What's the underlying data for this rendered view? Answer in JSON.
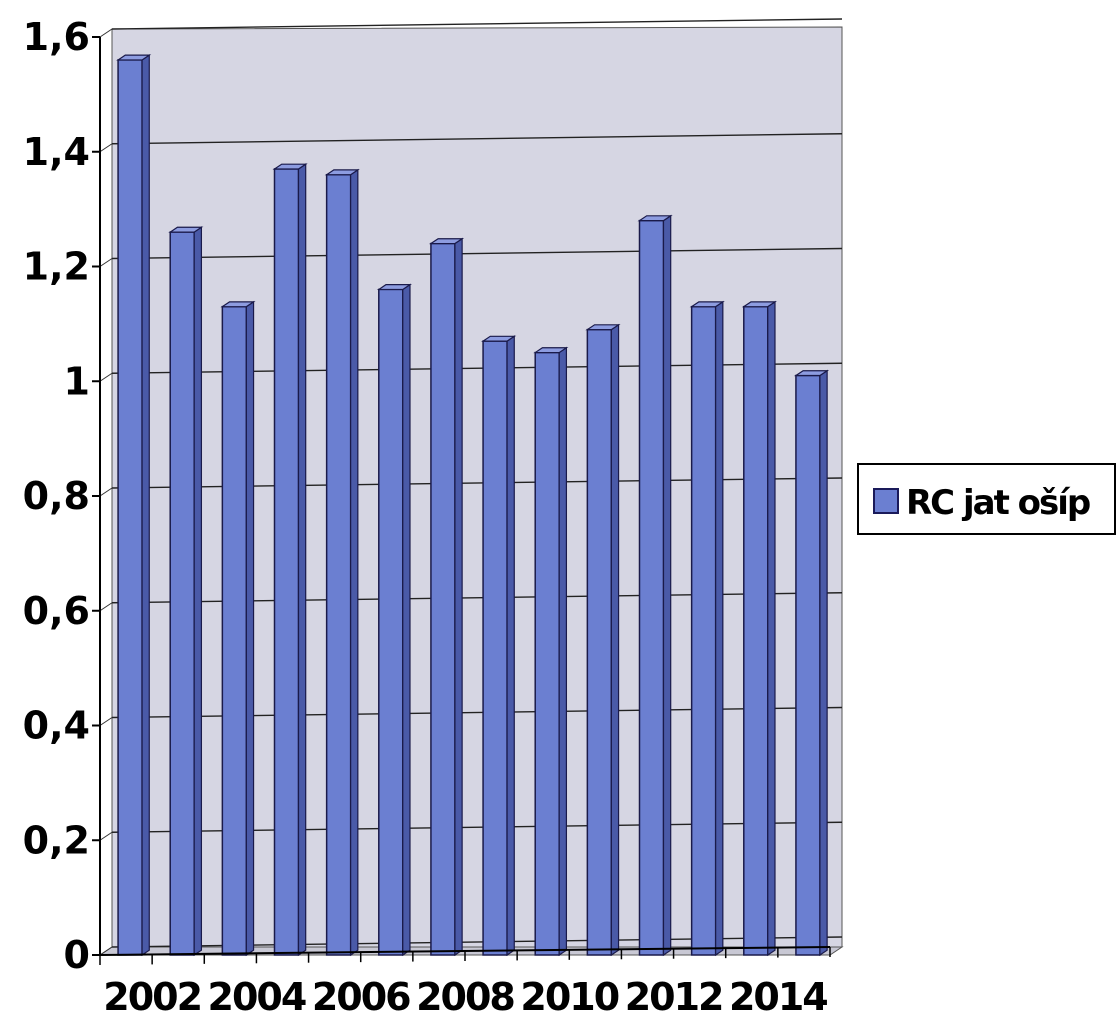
{
  "chart_data": {
    "type": "bar",
    "style": "3d-column",
    "categories": [
      "2002",
      "2003",
      "2004",
      "2005",
      "2006",
      "2007",
      "2008",
      "2009",
      "2010",
      "2011",
      "2012",
      "2013",
      "2014",
      "2015"
    ],
    "x_tick_labels": [
      "2002",
      "2004",
      "2006",
      "2008",
      "2010",
      "2012",
      "2014"
    ],
    "series": [
      {
        "name": "RC jat ošíp",
        "color": "#6b7fd1",
        "values": [
          1.56,
          1.26,
          1.13,
          1.37,
          1.36,
          1.16,
          1.24,
          1.07,
          1.05,
          1.09,
          1.28,
          1.13,
          1.13,
          1.01
        ]
      }
    ],
    "y_ticks": [
      "0",
      "0,2",
      "0,4",
      "0,6",
      "0,8",
      "1",
      "1,2",
      "1,4",
      "1,6"
    ],
    "ylim": [
      0,
      1.6
    ],
    "grid": true,
    "legend_position": "right",
    "back_wall_color": "#d6d6e3"
  }
}
